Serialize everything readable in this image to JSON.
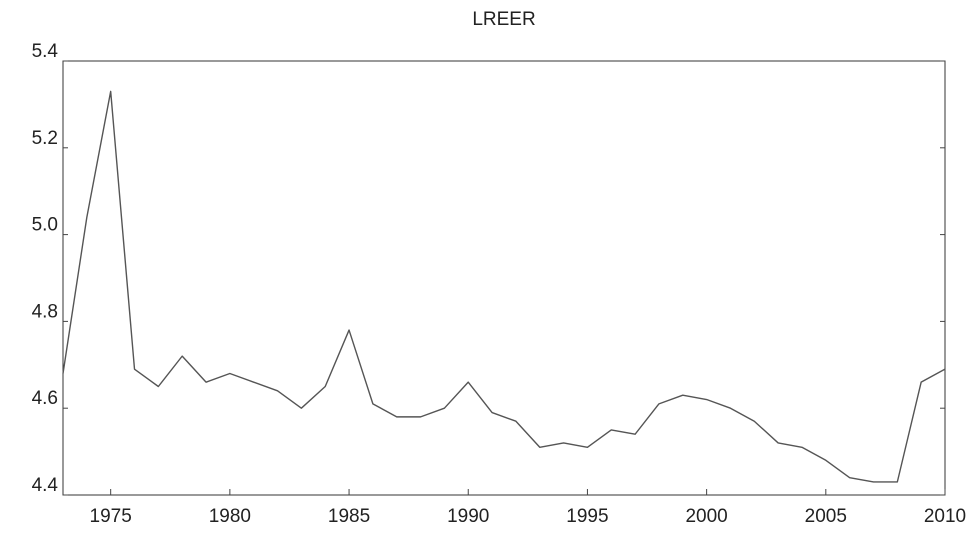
{
  "chart_data": {
    "type": "line",
    "title": "LREER",
    "x": [
      1973,
      1974,
      1975,
      1976,
      1977,
      1978,
      1979,
      1980,
      1981,
      1982,
      1983,
      1984,
      1985,
      1986,
      1987,
      1988,
      1989,
      1990,
      1991,
      1992,
      1993,
      1994,
      1995,
      1996,
      1997,
      1998,
      1999,
      2000,
      2001,
      2002,
      2003,
      2004,
      2005,
      2006,
      2007,
      2008,
      2009,
      2010
    ],
    "values": [
      4.68,
      5.04,
      5.33,
      4.69,
      4.65,
      4.72,
      4.66,
      4.68,
      4.66,
      4.64,
      4.6,
      4.65,
      4.78,
      4.61,
      4.58,
      4.58,
      4.6,
      4.66,
      4.59,
      4.57,
      4.51,
      4.52,
      4.51,
      4.55,
      4.54,
      4.61,
      4.63,
      4.62,
      4.6,
      4.57,
      4.52,
      4.51,
      4.48,
      4.44,
      4.43,
      4.43,
      4.66,
      4.69
    ],
    "color": "#555555",
    "xlim": [
      1973,
      2010
    ],
    "xticks": [
      1975,
      1980,
      1985,
      1990,
      1995,
      2000,
      2005,
      2010
    ],
    "ylim": [
      4.4,
      5.4
    ],
    "yticks": [
      4.4,
      4.6,
      4.8,
      {
        "value": 5,
        "label": "5.0"
      },
      5.2,
      5.4
    ],
    "grid": false
  }
}
